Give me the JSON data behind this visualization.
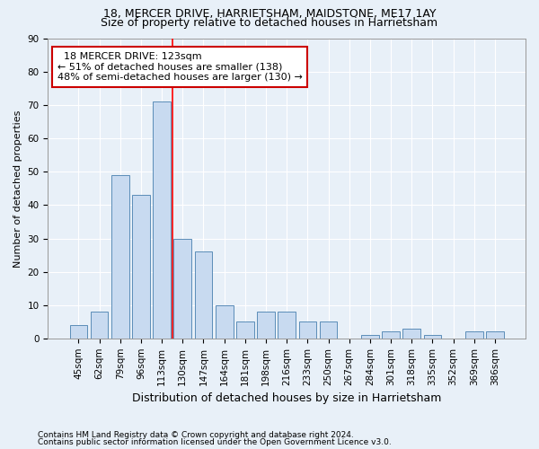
{
  "title1": "18, MERCER DRIVE, HARRIETSHAM, MAIDSTONE, ME17 1AY",
  "title2": "Size of property relative to detached houses in Harrietsham",
  "xlabel": "Distribution of detached houses by size in Harrietsham",
  "ylabel": "Number of detached properties",
  "footnote1": "Contains HM Land Registry data © Crown copyright and database right 2024.",
  "footnote2": "Contains public sector information licensed under the Open Government Licence v3.0.",
  "categories": [
    "45sqm",
    "62sqm",
    "79sqm",
    "96sqm",
    "113sqm",
    "130sqm",
    "147sqm",
    "164sqm",
    "181sqm",
    "198sqm",
    "216sqm",
    "233sqm",
    "250sqm",
    "267sqm",
    "284sqm",
    "301sqm",
    "318sqm",
    "335sqm",
    "352sqm",
    "369sqm",
    "386sqm"
  ],
  "values": [
    4,
    8,
    49,
    43,
    71,
    30,
    26,
    10,
    5,
    8,
    8,
    5,
    5,
    0,
    1,
    2,
    3,
    1,
    0,
    2,
    2
  ],
  "bar_color": "#c8daf0",
  "bar_edge_color": "#5b8db8",
  "vline_x_index": 4,
  "vline_color": "red",
  "annotation_title": "18 MERCER DRIVE: 123sqm",
  "annotation_line1": "← 51% of detached houses are smaller (138)",
  "annotation_line2": "48% of semi-detached houses are larger (130) →",
  "annotation_box_color": "#ffffff",
  "annotation_box_edge": "#cc0000",
  "ylim": [
    0,
    90
  ],
  "yticks": [
    0,
    10,
    20,
    30,
    40,
    50,
    60,
    70,
    80,
    90
  ],
  "bg_color": "#e8f0f8",
  "plot_bg_color": "#e8f0f8",
  "title_fontsize": 9,
  "subtitle_fontsize": 9,
  "ylabel_fontsize": 8,
  "xlabel_fontsize": 9,
  "tick_fontsize": 7.5,
  "annot_fontsize": 8
}
